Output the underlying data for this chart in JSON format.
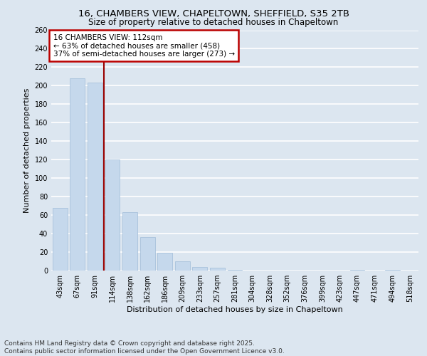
{
  "title_line1": "16, CHAMBERS VIEW, CHAPELTOWN, SHEFFIELD, S35 2TB",
  "title_line2": "Size of property relative to detached houses in Chapeltown",
  "xlabel": "Distribution of detached houses by size in Chapeltown",
  "ylabel": "Number of detached properties",
  "categories": [
    "43sqm",
    "67sqm",
    "91sqm",
    "114sqm",
    "138sqm",
    "162sqm",
    "186sqm",
    "209sqm",
    "233sqm",
    "257sqm",
    "281sqm",
    "304sqm",
    "328sqm",
    "352sqm",
    "376sqm",
    "399sqm",
    "423sqm",
    "447sqm",
    "471sqm",
    "494sqm",
    "518sqm"
  ],
  "values": [
    68,
    208,
    203,
    120,
    63,
    36,
    19,
    10,
    4,
    3,
    1,
    0,
    0,
    0,
    0,
    0,
    0,
    1,
    0,
    1,
    0
  ],
  "bar_color": "#c5d8ec",
  "bar_edge_color": "#a0bcd8",
  "background_color": "#dce6f0",
  "grid_color": "#ffffff",
  "vline_x": 2.5,
  "vline_color": "#990000",
  "annotation_box_text": "16 CHAMBERS VIEW: 112sqm\n← 63% of detached houses are smaller (458)\n37% of semi-detached houses are larger (273) →",
  "annotation_box_color": "#bb0000",
  "annotation_box_bg": "#ffffff",
  "ylim": [
    0,
    260
  ],
  "yticks": [
    0,
    20,
    40,
    60,
    80,
    100,
    120,
    140,
    160,
    180,
    200,
    220,
    240,
    260
  ],
  "footer_line1": "Contains HM Land Registry data © Crown copyright and database right 2025.",
  "footer_line2": "Contains public sector information licensed under the Open Government Licence v3.0.",
  "title_fontsize": 9.5,
  "subtitle_fontsize": 8.5,
  "axis_label_fontsize": 8,
  "tick_fontsize": 7,
  "annotation_fontsize": 7.5,
  "footer_fontsize": 6.5
}
